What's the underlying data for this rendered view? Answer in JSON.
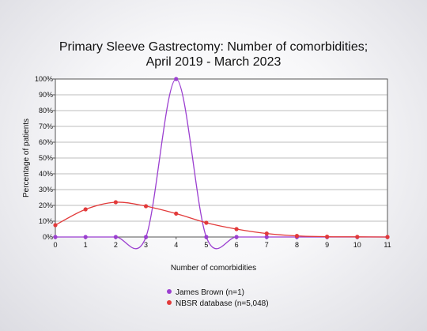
{
  "chart_data": {
    "type": "line",
    "title_lines": [
      "Primary Sleeve Gastrectomy: Number of comorbidities;",
      "April 2019 - March 2023"
    ],
    "xlabel": "Number of comorbidities",
    "ylabel": "Percentage of patients",
    "x": [
      0,
      1,
      2,
      3,
      4,
      5,
      6,
      7,
      8,
      9,
      10,
      11
    ],
    "xlim": [
      0,
      11
    ],
    "ylim": [
      0,
      100
    ],
    "y_ticks": [
      "0%",
      "10%",
      "20%",
      "30%",
      "40%",
      "50%",
      "60%",
      "70%",
      "80%",
      "90%",
      "100%"
    ],
    "grid": "horizontal",
    "legend_position": "bottom",
    "series": [
      {
        "name": "James Brown (n=1)",
        "color": "#9b3fd0",
        "values": [
          0,
          0,
          0,
          0,
          100,
          0,
          0,
          0,
          0,
          0,
          0,
          0
        ]
      },
      {
        "name": "NBSR database (n=5,048)",
        "color": "#e23a3a",
        "values": [
          7.5,
          17.5,
          22,
          19.5,
          14.8,
          9,
          5,
          2.2,
          0.7,
          0.2,
          0.1,
          0
        ]
      }
    ]
  }
}
